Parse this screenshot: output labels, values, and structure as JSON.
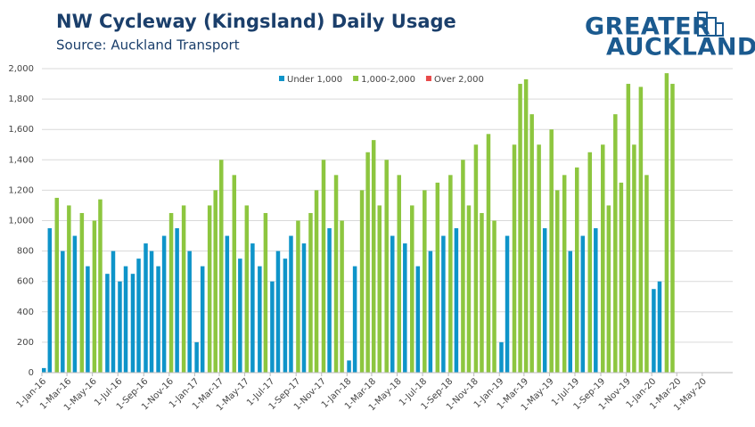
{
  "chart_data": {
    "type": "bar",
    "title": "NW Cycleway (Kingsland) Daily Usage",
    "subtitle": "Source: Auckland Transport",
    "logo_text": [
      "GREATER",
      "AUCKLAND"
    ],
    "x": [
      "2016-01-01",
      "2016-01-15",
      "2016-02-01",
      "2016-02-15",
      "2016-03-01",
      "2016-03-15",
      "2016-04-01",
      "2016-04-15",
      "2016-05-01",
      "2016-05-15",
      "2016-06-01",
      "2016-06-15",
      "2016-07-01",
      "2016-07-15",
      "2016-08-01",
      "2016-08-15",
      "2016-09-01",
      "2016-09-15",
      "2016-10-01",
      "2016-10-15",
      "2016-11-01",
      "2016-11-15",
      "2016-12-01",
      "2016-12-15",
      "2017-01-01",
      "2017-01-15",
      "2017-02-01",
      "2017-02-15",
      "2017-03-01",
      "2017-03-15",
      "2017-04-01",
      "2017-04-15",
      "2017-05-01",
      "2017-05-15",
      "2017-06-01",
      "2017-06-15",
      "2017-07-01",
      "2017-07-15",
      "2017-08-01",
      "2017-08-15",
      "2017-09-01",
      "2017-09-15",
      "2017-10-01",
      "2017-10-15",
      "2017-11-01",
      "2017-11-15",
      "2017-12-01",
      "2017-12-15",
      "2018-01-01",
      "2018-01-15",
      "2018-02-01",
      "2018-02-15",
      "2018-03-01",
      "2018-03-15",
      "2018-04-01",
      "2018-04-15",
      "2018-05-01",
      "2018-05-15",
      "2018-06-01",
      "2018-06-15",
      "2018-07-01",
      "2018-07-15",
      "2018-08-01",
      "2018-08-15",
      "2018-09-01",
      "2018-09-15",
      "2018-10-01",
      "2018-10-15",
      "2018-11-01",
      "2018-11-15",
      "2018-12-01",
      "2018-12-15",
      "2019-01-01",
      "2019-01-15",
      "2019-02-01",
      "2019-02-15",
      "2019-03-01",
      "2019-03-15",
      "2019-04-01",
      "2019-04-15",
      "2019-05-01",
      "2019-05-15",
      "2019-06-01",
      "2019-06-15",
      "2019-07-01",
      "2019-07-15",
      "2019-08-01",
      "2019-08-15",
      "2019-09-01",
      "2019-09-15",
      "2019-10-01",
      "2019-10-15",
      "2019-11-01",
      "2019-11-15",
      "2019-12-01",
      "2019-12-15",
      "2020-01-01",
      "2020-01-15",
      "2020-02-01",
      "2020-02-15"
    ],
    "series": [
      {
        "name": "Under 1,000",
        "color": "#0e94c9",
        "values": [
          30,
          950,
          null,
          800,
          null,
          900,
          null,
          700,
          null,
          null,
          650,
          800,
          600,
          700,
          650,
          750,
          850,
          800,
          700,
          900,
          null,
          950,
          null,
          800,
          200,
          700,
          null,
          null,
          null,
          900,
          null,
          750,
          null,
          850,
          700,
          null,
          600,
          800,
          750,
          900,
          null,
          850,
          null,
          null,
          null,
          950,
          null,
          null,
          80,
          700,
          null,
          null,
          null,
          null,
          null,
          900,
          null,
          850,
          null,
          700,
          null,
          800,
          null,
          900,
          null,
          950,
          null,
          null,
          null,
          null,
          null,
          null,
          200,
          900,
          null,
          null,
          null,
          null,
          null,
          950,
          null,
          null,
          null,
          800,
          null,
          900,
          null,
          950,
          null,
          null,
          null,
          null,
          null,
          null,
          null,
          null,
          550,
          600,
          null,
          null
        ]
      },
      {
        "name": "1,000-2,000",
        "color": "#8dc63f",
        "values": [
          null,
          null,
          1150,
          null,
          1100,
          null,
          1050,
          null,
          1000,
          1140,
          null,
          null,
          null,
          null,
          null,
          null,
          null,
          null,
          null,
          null,
          1050,
          null,
          1100,
          null,
          null,
          null,
          1100,
          1200,
          1400,
          null,
          1300,
          null,
          1100,
          null,
          null,
          1050,
          null,
          null,
          null,
          null,
          1000,
          null,
          1050,
          1200,
          1400,
          null,
          1300,
          1000,
          null,
          null,
          1200,
          1450,
          1530,
          1100,
          1400,
          null,
          1300,
          null,
          1100,
          null,
          1200,
          null,
          1250,
          null,
          1300,
          null,
          1400,
          1100,
          1500,
          1050,
          1570,
          1000,
          null,
          null,
          1500,
          1900,
          1930,
          1700,
          1500,
          null,
          1600,
          1200,
          1300,
          null,
          1350,
          null,
          1450,
          null,
          1500,
          1100,
          1700,
          1250,
          1900,
          1500,
          1880,
          1300,
          null,
          null,
          1970,
          1900
        ]
      },
      {
        "name": "Over 2,000",
        "color": "#e84a4a",
        "values": [
          null,
          null,
          null,
          null,
          null,
          null,
          null,
          null,
          null,
          null,
          null,
          null,
          null,
          null,
          null,
          null,
          null,
          null,
          null,
          null,
          null,
          null,
          null,
          null,
          null,
          null,
          null,
          null,
          null,
          null,
          null,
          null,
          null,
          null,
          null,
          null,
          null,
          null,
          null,
          null,
          null,
          null,
          null,
          null,
          null,
          null,
          null,
          null,
          null,
          null,
          null,
          null,
          null,
          null,
          null,
          null,
          null,
          null,
          null,
          null,
          null,
          null,
          null,
          null,
          null,
          null,
          null,
          null,
          null,
          null,
          null,
          null,
          null,
          null,
          null,
          null,
          null,
          null,
          null,
          null,
          null,
          null,
          null,
          null,
          null,
          null,
          null,
          null,
          null,
          null,
          null,
          null,
          null,
          null,
          null,
          null,
          null,
          null,
          null,
          null
        ]
      }
    ],
    "xlim": [
      "2016-01-01",
      "2020-07-13"
    ],
    "xticks": [
      {
        "value": "2016-01-01",
        "label": "1-Jan-16"
      },
      {
        "value": "2016-03-01",
        "label": "1-Mar-16"
      },
      {
        "value": "2016-05-01",
        "label": "1-May-16"
      },
      {
        "value": "2016-07-01",
        "label": "1-Jul-16"
      },
      {
        "value": "2016-09-01",
        "label": "1-Sep-16"
      },
      {
        "value": "2016-11-01",
        "label": "1-Nov-16"
      },
      {
        "value": "2017-01-01",
        "label": "1-Jan-17"
      },
      {
        "value": "2017-03-01",
        "label": "1-Mar-17"
      },
      {
        "value": "2017-05-01",
        "label": "1-May-17"
      },
      {
        "value": "2017-07-01",
        "label": "1-Jul-17"
      },
      {
        "value": "2017-09-01",
        "label": "1-Sep-17"
      },
      {
        "value": "2017-11-01",
        "label": "1-Nov-17"
      },
      {
        "value": "2018-01-01",
        "label": "1-Jan-18"
      },
      {
        "value": "2018-03-01",
        "label": "1-Mar-18"
      },
      {
        "value": "2018-05-01",
        "label": "1-May-18"
      },
      {
        "value": "2018-07-01",
        "label": "1-Jul-18"
      },
      {
        "value": "2018-09-01",
        "label": "1-Sep-18"
      },
      {
        "value": "2018-11-01",
        "label": "1-Nov-18"
      },
      {
        "value": "2019-01-01",
        "label": "1-Jan-19"
      },
      {
        "value": "2019-03-01",
        "label": "1-Mar-19"
      },
      {
        "value": "2019-05-01",
        "label": "1-May-19"
      },
      {
        "value": "2019-07-01",
        "label": "1-Jul-19"
      },
      {
        "value": "2019-09-01",
        "label": "1-Sep-19"
      },
      {
        "value": "2019-11-01",
        "label": "1-Nov-19"
      },
      {
        "value": "2020-01-01",
        "label": "1-Jan-20"
      },
      {
        "value": "2020-03-01",
        "label": "1-Mar-20"
      },
      {
        "value": "2020-05-01",
        "label": "1-May-20"
      }
    ],
    "ylim": [
      0,
      2000
    ],
    "yticks": [
      0,
      200,
      400,
      600,
      800,
      {
        "value": 1000,
        "label": "1,000"
      },
      {
        "value": 1200,
        "label": "1,200"
      },
      {
        "value": 1400,
        "label": "1,400"
      },
      {
        "value": 1600,
        "label": "1,600"
      },
      {
        "value": 1800,
        "label": "1,800"
      },
      {
        "value": 2000,
        "label": "2,000"
      }
    ],
    "grid": true,
    "legend": "top"
  }
}
